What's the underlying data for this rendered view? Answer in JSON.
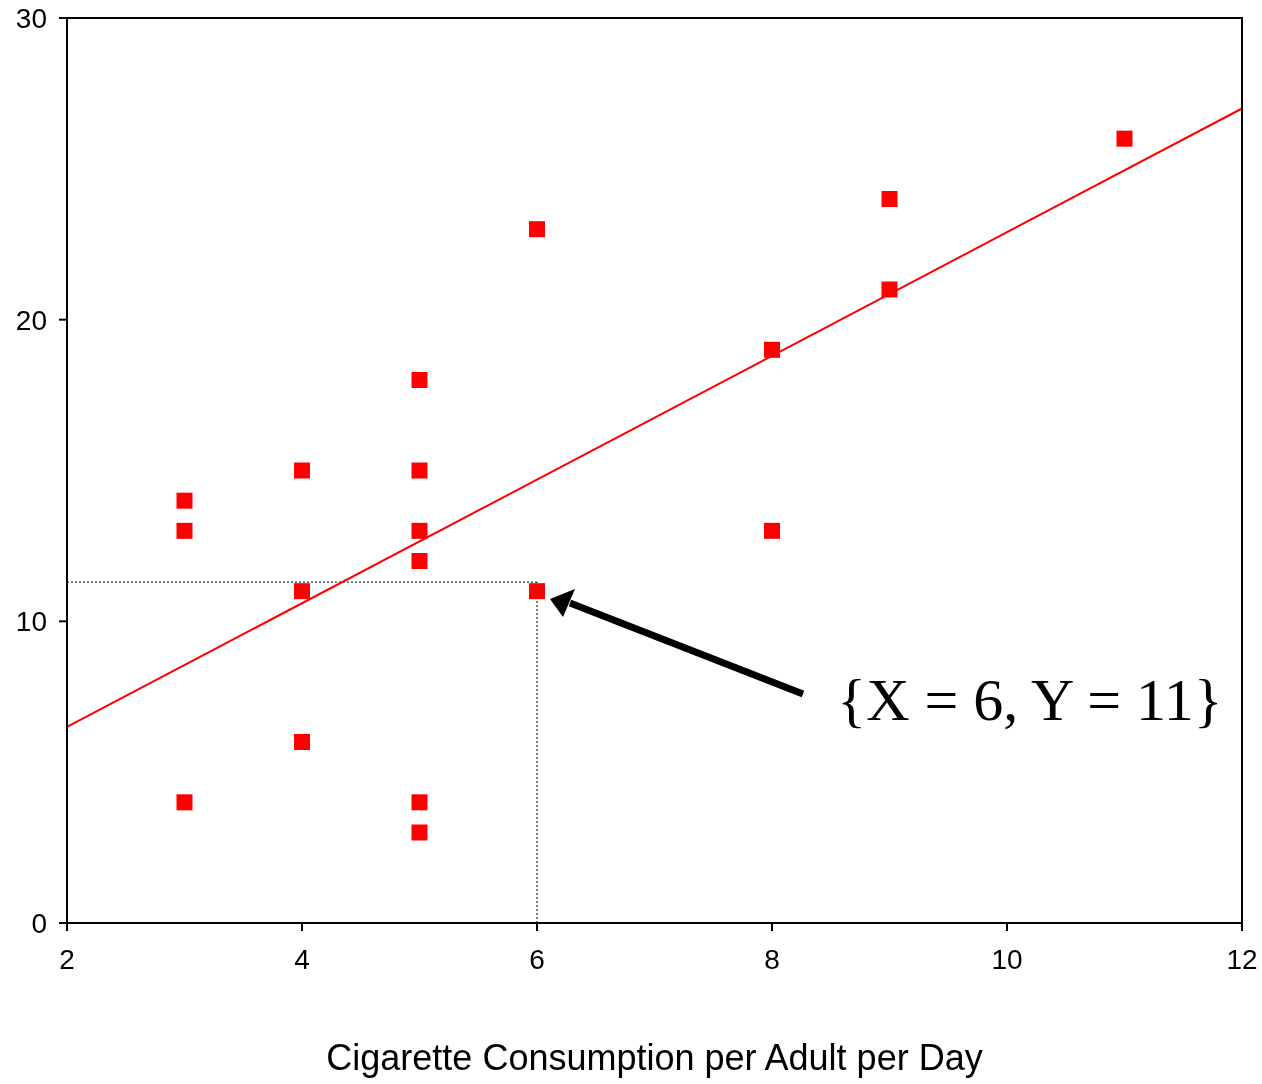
{
  "chart_data": {
    "type": "scatter",
    "xlabel": "Cigarette Consumption per Adult per Day",
    "xlim": [
      2,
      12
    ],
    "xticks": [
      2,
      4,
      6,
      8,
      10,
      12
    ],
    "ylim": [
      0,
      30
    ],
    "yticks": [
      0,
      10,
      20,
      30
    ],
    "grid": false,
    "marker": "square",
    "series": [
      {
        "color": "#ff0000",
        "x": [
          3,
          3,
          3,
          4,
          4,
          4,
          5,
          5,
          5,
          5,
          5,
          5,
          6,
          6,
          8,
          8,
          9,
          9,
          11
        ],
        "values": [
          14,
          13,
          4,
          15,
          11,
          6,
          18,
          15,
          13,
          12,
          4,
          3,
          23,
          11,
          19,
          13,
          24,
          21,
          26
        ]
      },
      {
        "type": "line",
        "color": "#ff0000",
        "marker": "none",
        "x": [
          2,
          12
        ],
        "values": [
          6.5,
          27
        ]
      }
    ],
    "ref_lines": [
      {
        "axis": "y",
        "value": 11.3,
        "line_style": "dotted",
        "color": "#000000"
      },
      {
        "axis": "x",
        "value": 6,
        "line_style": "dotted",
        "color": "#000000"
      }
    ],
    "annotations": [
      "{X = 6, Y = 11}"
    ]
  }
}
